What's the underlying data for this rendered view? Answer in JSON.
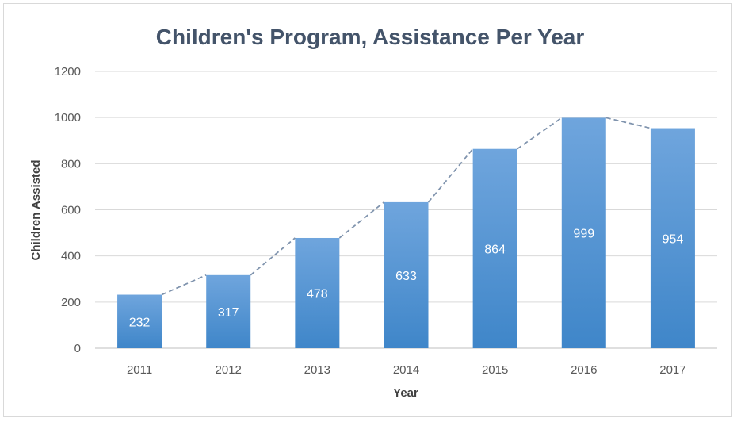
{
  "chart_data": {
    "type": "bar",
    "title": "Children's Program, Assistance Per Year",
    "xlabel": "Year",
    "ylabel": "Children Assisted",
    "categories": [
      "2011",
      "2012",
      "2013",
      "2014",
      "2015",
      "2016",
      "2017"
    ],
    "values": [
      232,
      317,
      478,
      633,
      864,
      999,
      954
    ],
    "ylim": [
      0,
      1200
    ],
    "yticks": [
      0,
      200,
      400,
      600,
      800,
      1000,
      1200
    ],
    "grid": true,
    "data_labels": true,
    "trendline": "dashed line connecting bar tops",
    "colors": {
      "bar_top": "#6fa5dd",
      "bar_bottom": "#3f86c9",
      "trendline": "#7f93ad",
      "title": "#44546a"
    }
  }
}
